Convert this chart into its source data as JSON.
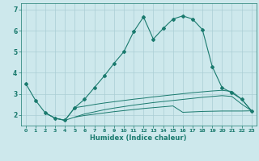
{
  "xlabel": "Humidex (Indice chaleur)",
  "bg_color": "#cde8ec",
  "grid_color": "#aacdd4",
  "line_color": "#1a7a6e",
  "xlim": [
    -0.5,
    23.5
  ],
  "ylim": [
    1.5,
    7.3
  ],
  "yticks": [
    2,
    3,
    4,
    5,
    6,
    7
  ],
  "xticks": [
    0,
    1,
    2,
    3,
    4,
    5,
    6,
    7,
    8,
    9,
    10,
    11,
    12,
    13,
    14,
    15,
    16,
    17,
    18,
    19,
    20,
    21,
    22,
    23
  ],
  "main_x": [
    0,
    1,
    2,
    3,
    4,
    5,
    6,
    7,
    8,
    9,
    10,
    11,
    12,
    13,
    14,
    15,
    16,
    17,
    18,
    19,
    20,
    21,
    22,
    23
  ],
  "main_y": [
    3.5,
    2.7,
    2.1,
    1.85,
    1.75,
    2.35,
    2.75,
    3.3,
    3.85,
    4.45,
    5.0,
    5.95,
    6.65,
    5.6,
    6.1,
    6.55,
    6.7,
    6.55,
    6.05,
    4.3,
    3.3,
    3.05,
    2.75,
    2.2
  ],
  "low1_x": [
    2,
    3,
    4,
    5,
    6,
    7,
    8,
    9,
    10,
    11,
    12,
    13,
    14,
    15,
    16,
    17,
    18,
    19,
    20,
    21,
    22,
    23
  ],
  "low1_y": [
    2.1,
    1.85,
    1.75,
    2.35,
    2.42,
    2.5,
    2.57,
    2.63,
    2.69,
    2.75,
    2.8,
    2.86,
    2.91,
    2.96,
    3.01,
    3.06,
    3.1,
    3.14,
    3.17,
    3.12,
    2.75,
    2.2
  ],
  "low2_x": [
    2,
    3,
    4,
    5,
    6,
    7,
    8,
    9,
    10,
    11,
    12,
    13,
    14,
    15,
    16,
    17,
    18,
    19,
    20,
    21,
    22,
    23
  ],
  "low2_y": [
    2.1,
    1.85,
    1.75,
    1.9,
    2.05,
    2.15,
    2.25,
    2.33,
    2.4,
    2.47,
    2.53,
    2.59,
    2.64,
    2.69,
    2.74,
    2.79,
    2.84,
    2.88,
    2.92,
    2.88,
    2.52,
    2.2
  ],
  "low3_x": [
    5,
    6,
    7,
    8,
    9,
    10,
    11,
    12,
    13,
    14,
    15,
    16,
    17,
    18,
    19,
    20,
    21,
    22,
    23
  ],
  "low3_y": [
    1.9,
    1.98,
    2.04,
    2.1,
    2.16,
    2.21,
    2.26,
    2.31,
    2.35,
    2.39,
    2.43,
    2.13,
    2.15,
    2.17,
    2.18,
    2.19,
    2.19,
    2.19,
    2.2
  ]
}
